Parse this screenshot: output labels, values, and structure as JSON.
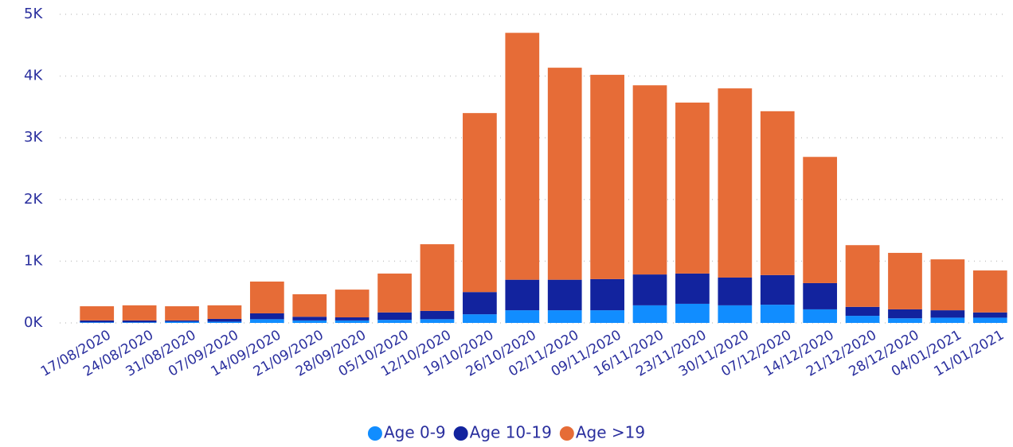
{
  "chart_data": {
    "type": "stacked_bar",
    "categories": [
      "17/08/2020",
      "24/08/2020",
      "31/08/2020",
      "07/09/2020",
      "14/09/2020",
      "21/09/2020",
      "28/09/2020",
      "05/10/2020",
      "12/10/2020",
      "19/10/2020",
      "26/10/2020",
      "02/11/2020",
      "09/11/2020",
      "16/11/2020",
      "23/11/2020",
      "30/11/2020",
      "07/12/2020",
      "14/12/2020",
      "21/12/2020",
      "28/12/2020",
      "04/01/2021",
      "11/01/2021"
    ],
    "series": [
      {
        "name": "Age 0-9",
        "color": "#118DFF",
        "values": [
          10,
          10,
          20,
          20,
          60,
          40,
          40,
          50,
          60,
          140,
          205,
          205,
          205,
          285,
          310,
          285,
          295,
          220,
          115,
          75,
          85,
          85
        ]
      },
      {
        "name": "Age 10-19",
        "color": "#12239E",
        "values": [
          30,
          30,
          20,
          45,
          95,
          60,
          50,
          120,
          135,
          360,
          495,
          495,
          505,
          500,
          490,
          450,
          480,
          425,
          145,
          145,
          120,
          85
        ]
      },
      {
        "name": "Age >19",
        "color": "#E66C37",
        "values": [
          230,
          245,
          230,
          220,
          515,
          365,
          450,
          630,
          1080,
          2900,
          4000,
          3435,
          3310,
          3065,
          2770,
          3065,
          2655,
          2045,
          1000,
          915,
          825,
          680
        ]
      }
    ],
    "ylim": [
      0,
      5000
    ],
    "yticks": [
      {
        "value": 0,
        "label": "0K"
      },
      {
        "value": 1000,
        "label": "1K"
      },
      {
        "value": 2000,
        "label": "2K"
      },
      {
        "value": 3000,
        "label": "3K"
      },
      {
        "value": 4000,
        "label": "4K"
      },
      {
        "value": 5000,
        "label": "5K"
      }
    ],
    "grid": true
  }
}
